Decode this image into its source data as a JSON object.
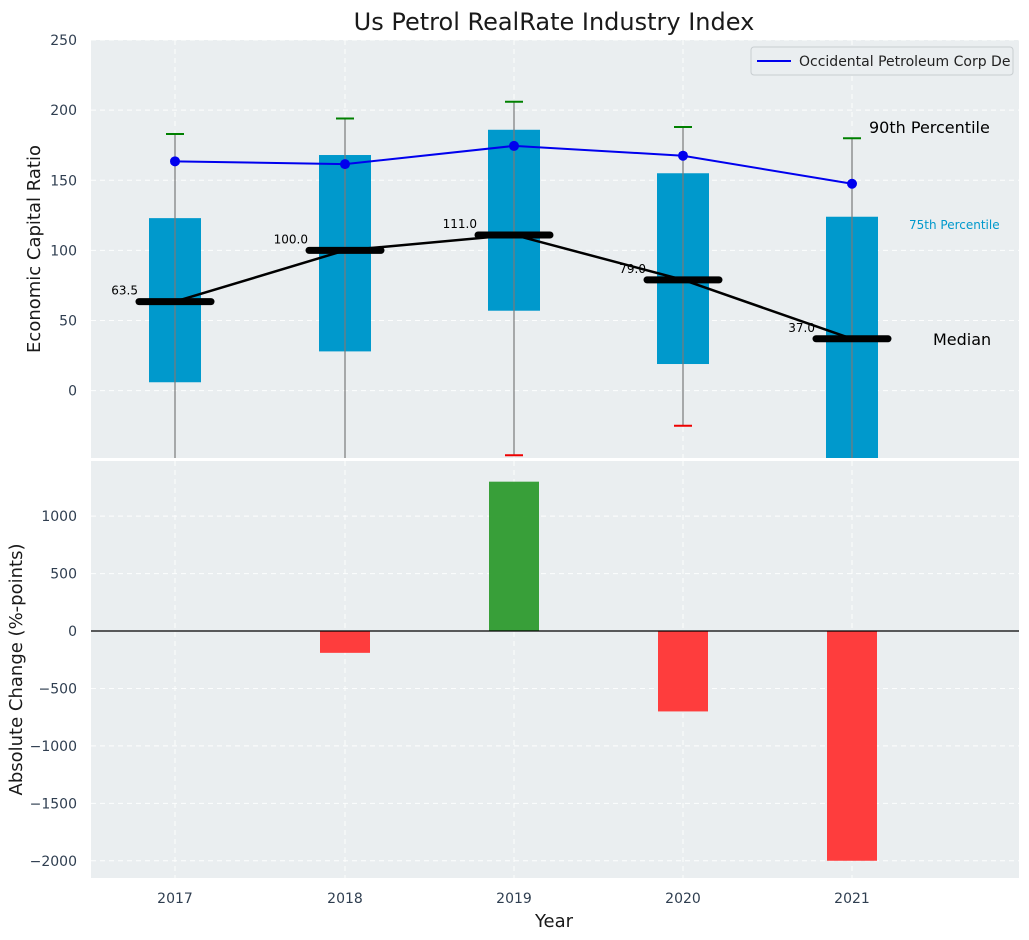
{
  "title": "Us Petrol RealRate Industry Index",
  "chart_data": [
    {
      "type": "box-range",
      "panel": "top",
      "ylabel": "Economic Capital Ratio",
      "ylim": [
        -48,
        250
      ],
      "yticks": [
        0,
        50,
        100,
        150,
        200,
        250
      ],
      "grid": true,
      "categories": [
        "2017",
        "2018",
        "2019",
        "2020",
        "2021"
      ],
      "series": [
        {
          "name": "Occidental Petroleum Corp De",
          "type": "line",
          "values": [
            163.5,
            161.5,
            174.5,
            167.5,
            147.5
          ]
        }
      ],
      "median": [
        63.5,
        100.0,
        111.0,
        79.0,
        37.0
      ],
      "median_labels": [
        "63.5",
        "100.0",
        "111.0",
        "79.0",
        "37.0"
      ],
      "box_low": [
        6,
        28,
        57,
        19,
        -48
      ],
      "box_high": [
        123,
        168,
        186,
        155,
        124
      ],
      "whisker_high": [
        183,
        194,
        206,
        188,
        180
      ],
      "whisker_low": [
        null,
        null,
        -46,
        -25,
        null
      ],
      "whisker_low_visible": [
        false,
        false,
        true,
        true,
        false
      ],
      "annotations": {
        "p90": "90th Percentile",
        "p75": "75th Percentile",
        "median": "Median"
      },
      "legend": {
        "position": "top-right",
        "entries": [
          "Occidental Petroleum Corp De"
        ]
      },
      "colors": {
        "box": "#0099cc",
        "line": "#0000ee",
        "median": "#000000",
        "whisker_high": "#008000",
        "whisker_low": "#ee0000",
        "p75_label": "#0099cc"
      }
    },
    {
      "type": "bar",
      "panel": "bottom",
      "xlabel": "Year",
      "ylabel": "Absolute Change (%-points)",
      "ylim": [
        -2150,
        1480
      ],
      "yticks": [
        -2000,
        -1500,
        -1000,
        -500,
        0,
        500,
        1000
      ],
      "ytick_labels": [
        "−2000",
        "−1500",
        "−1000",
        "−500",
        "0",
        "500",
        "1000"
      ],
      "grid": true,
      "categories": [
        "2017",
        "2018",
        "2019",
        "2020",
        "2021"
      ],
      "values": [
        0,
        -190,
        1300,
        -700,
        -2000
      ],
      "colors": {
        "positive": "#2e9a2e",
        "negative": "#ff3333"
      }
    }
  ]
}
